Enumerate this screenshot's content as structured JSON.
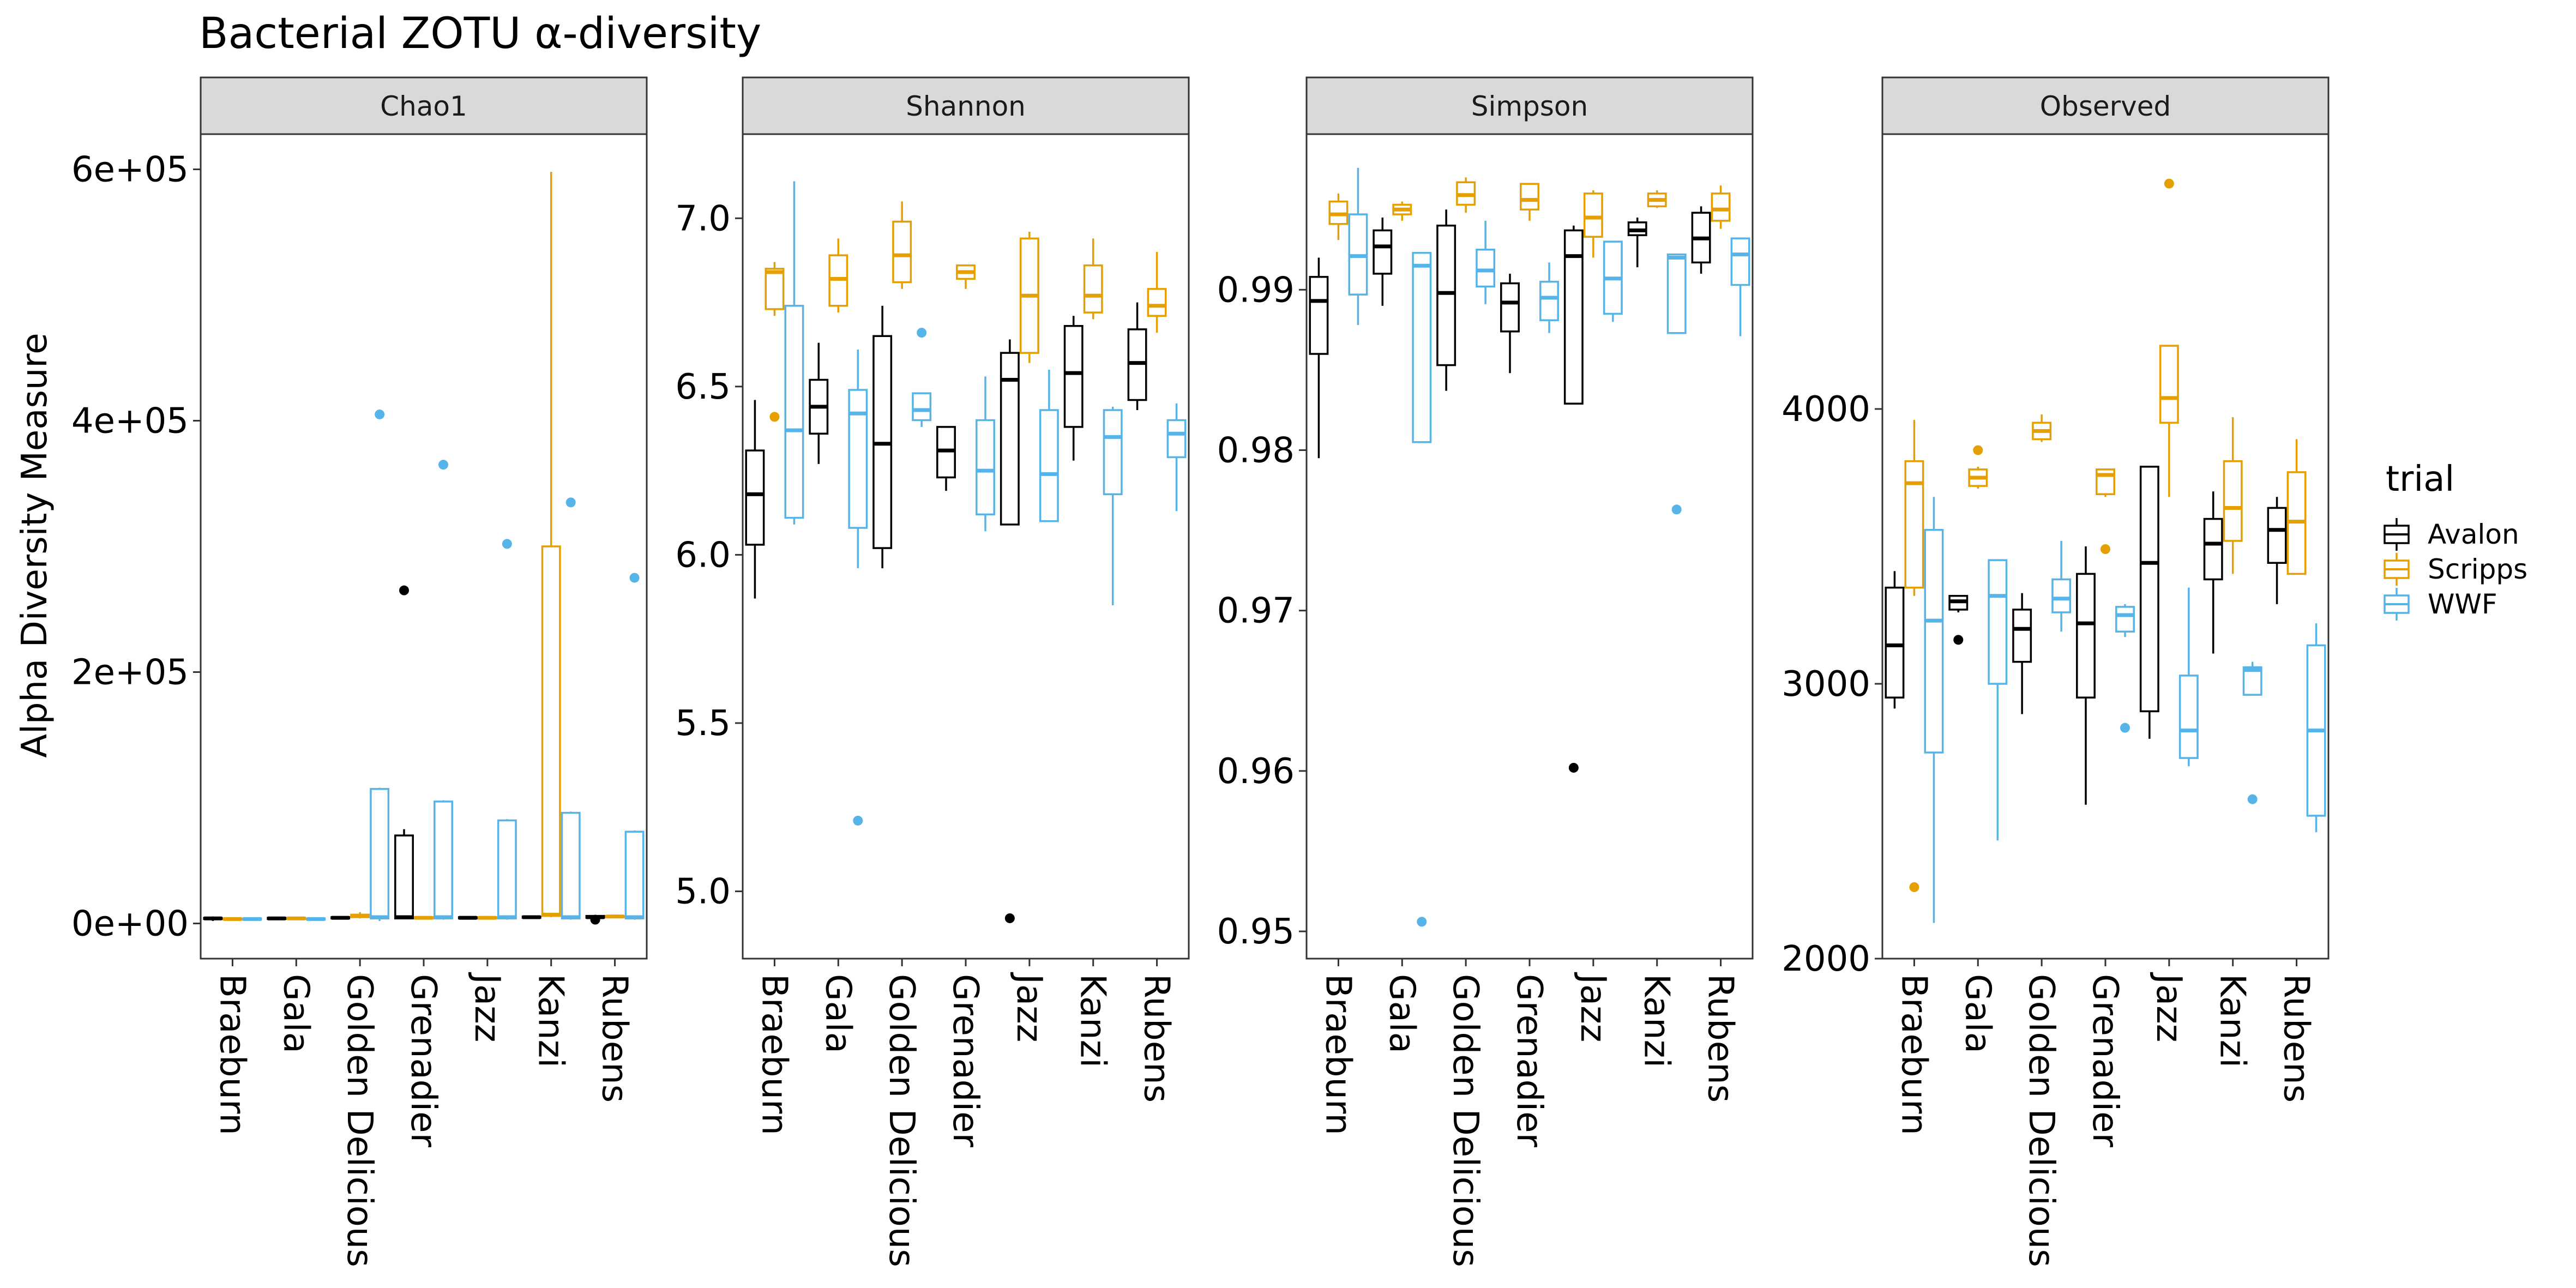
{
  "chart_data": {
    "type": "box",
    "title": "Bacterial ZOTU α-diversity",
    "ylabel": "Alpha Diversity Measure",
    "xlabel": "",
    "categories": [
      "Braeburn",
      "Gala",
      "Golden Delicious",
      "Grenadier",
      "Jazz",
      "Kanzi",
      "Rubens"
    ],
    "legend": {
      "title": "trial",
      "position": "right",
      "items": [
        {
          "name": "Avalon",
          "color": "#000000"
        },
        {
          "name": "Scripps",
          "color": "#E69F00"
        },
        {
          "name": "WWF",
          "color": "#56B4E9"
        }
      ]
    },
    "panels": [
      {
        "name": "Chao1",
        "ylim": [
          -28000,
          628000
        ],
        "yticks": [
          0,
          200000,
          400000,
          600000
        ],
        "yticklabels": [
          "0e+00",
          "2e+05",
          "4e+05",
          "6e+05"
        ],
        "boxes": {
          "Avalon": [
            [
              2000,
              3500,
              4000,
              4500,
              5500,
              []
            ],
            [
              3000,
              3500,
              4000,
              4500,
              5000,
              []
            ],
            [
              3500,
              4000,
              4500,
              5000,
              5500,
              []
            ],
            [
              3500,
              4000,
              5000,
              70000,
              75000,
              [
                265000
              ]
            ],
            [
              3500,
              4000,
              4500,
              5000,
              5500,
              []
            ],
            [
              4000,
              4500,
              5000,
              5500,
              6000,
              []
            ],
            [
              3500,
              4500,
              5000,
              6000,
              6500,
              [
                3000
              ]
            ]
          ],
          "Scripps": [
            [
              2500,
              3000,
              3500,
              4000,
              4500,
              []
            ],
            [
              3000,
              3500,
              4000,
              4500,
              5000,
              []
            ],
            [
              4000,
              5000,
              6000,
              7000,
              9000,
              []
            ],
            [
              3500,
              4000,
              4500,
              5000,
              5500,
              []
            ],
            [
              3500,
              4000,
              4500,
              5000,
              6000,
              []
            ],
            [
              5000,
              6000,
              7000,
              300000,
              598000,
              []
            ],
            [
              4000,
              5000,
              5500,
              6000,
              7000,
              []
            ]
          ],
          "WWF": [
            [
              2500,
              3000,
              3500,
              4000,
              4500,
              []
            ],
            [
              2500,
              3000,
              3500,
              4000,
              4500,
              []
            ],
            [
              2000,
              4000,
              5000,
              107000,
              108000,
              [
                405000
              ]
            ],
            [
              3000,
              4000,
              5000,
              97000,
              98000,
              [
                365000
              ]
            ],
            [
              3000,
              4000,
              5000,
              82000,
              83000,
              [
                302000
              ]
            ],
            [
              3000,
              4000,
              5000,
              88000,
              89000,
              [
                335000
              ]
            ],
            [
              3000,
              4000,
              5000,
              73000,
              74000,
              [
                275000
              ]
            ]
          ]
        }
      },
      {
        "name": "Shannon",
        "ylim": [
          4.8,
          7.25
        ],
        "yticks": [
          5.0,
          5.5,
          6.0,
          6.5,
          7.0
        ],
        "yticklabels": [
          "5.0",
          "5.5",
          "6.0",
          "6.5",
          "7.0"
        ],
        "boxes": {
          "Avalon": [
            [
              5.87,
              6.03,
              6.18,
              6.31,
              6.46,
              []
            ],
            [
              6.27,
              6.36,
              6.44,
              6.52,
              6.63,
              []
            ],
            [
              5.96,
              6.02,
              6.33,
              6.65,
              6.74,
              []
            ],
            [
              6.19,
              6.23,
              6.31,
              6.38,
              6.38,
              []
            ],
            [
              6.09,
              6.09,
              6.52,
              6.6,
              6.64,
              [
                4.92
              ]
            ],
            [
              6.28,
              6.38,
              6.54,
              6.68,
              6.71,
              []
            ],
            [
              6.43,
              6.46,
              6.57,
              6.67,
              6.75,
              []
            ]
          ],
          "Scripps": [
            [
              6.71,
              6.73,
              6.84,
              6.85,
              6.87,
              [
                6.41
              ]
            ],
            [
              6.72,
              6.74,
              6.82,
              6.89,
              6.94,
              []
            ],
            [
              6.79,
              6.81,
              6.89,
              6.99,
              7.05,
              []
            ],
            [
              6.79,
              6.82,
              6.84,
              6.86,
              6.86,
              []
            ],
            [
              6.57,
              6.6,
              6.77,
              6.94,
              6.96,
              []
            ],
            [
              6.7,
              6.72,
              6.77,
              6.86,
              6.94,
              []
            ],
            [
              6.66,
              6.71,
              6.74,
              6.79,
              6.9,
              []
            ]
          ],
          "WWF": [
            [
              6.09,
              6.11,
              6.37,
              6.74,
              7.11,
              []
            ],
            [
              5.96,
              6.08,
              6.42,
              6.49,
              6.61,
              [
                5.21
              ]
            ],
            [
              6.38,
              6.4,
              6.43,
              6.48,
              6.48,
              [
                6.66
              ]
            ],
            [
              6.07,
              6.12,
              6.25,
              6.4,
              6.53,
              []
            ],
            [
              6.1,
              6.1,
              6.24,
              6.43,
              6.55,
              []
            ],
            [
              5.85,
              6.18,
              6.35,
              6.43,
              6.44,
              []
            ],
            [
              6.13,
              6.29,
              6.36,
              6.4,
              6.45,
              []
            ]
          ]
        }
      },
      {
        "name": "Simpson",
        "ylim": [
          0.9483,
          0.9997
        ],
        "yticks": [
          0.95,
          0.96,
          0.97,
          0.98,
          0.99
        ],
        "yticklabels": [
          "0.95",
          "0.96",
          "0.97",
          "0.98",
          "0.99"
        ],
        "boxes": {
          "Avalon": [
            [
              0.9795,
              0.986,
              0.9893,
              0.9908,
              0.992,
              []
            ],
            [
              0.989,
              0.991,
              0.9927,
              0.9937,
              0.9945,
              []
            ],
            [
              0.9837,
              0.9853,
              0.9898,
              0.994,
              0.995,
              []
            ],
            [
              0.9848,
              0.9874,
              0.9892,
              0.9904,
              0.991,
              []
            ],
            [
              0.9829,
              0.9829,
              0.9921,
              0.9937,
              0.994,
              [
                0.9602
              ]
            ],
            [
              0.9914,
              0.9934,
              0.9937,
              0.9942,
              0.9945,
              []
            ],
            [
              0.991,
              0.9917,
              0.9932,
              0.9948,
              0.9952,
              []
            ]
          ],
          "Scripps": [
            [
              0.9931,
              0.9941,
              0.9947,
              0.9955,
              0.996,
              []
            ],
            [
              0.9943,
              0.9947,
              0.995,
              0.9953,
              0.9955,
              []
            ],
            [
              0.9948,
              0.9953,
              0.9959,
              0.9967,
              0.997,
              []
            ],
            [
              0.9943,
              0.995,
              0.9956,
              0.9966,
              0.9966,
              []
            ],
            [
              0.992,
              0.9933,
              0.9945,
              0.996,
              0.9962,
              []
            ],
            [
              0.9951,
              0.9952,
              0.9956,
              0.996,
              0.9962,
              []
            ],
            [
              0.9938,
              0.9943,
              0.995,
              0.996,
              0.9965,
              []
            ]
          ],
          "WWF": [
            [
              0.9878,
              0.9897,
              0.9921,
              0.9947,
              0.9976,
              []
            ],
            [
              0.9805,
              0.9805,
              0.9915,
              0.9923,
              0.9923,
              [
                0.9506
              ]
            ],
            [
              0.9891,
              0.9902,
              0.9912,
              0.9925,
              0.9943,
              []
            ],
            [
              0.9873,
              0.9881,
              0.9895,
              0.9905,
              0.9917,
              []
            ],
            [
              0.988,
              0.9885,
              0.9907,
              0.993,
              0.993,
              []
            ],
            [
              0.9873,
              0.9873,
              0.992,
              0.9922,
              0.9922,
              [
                0.9763
              ]
            ],
            [
              0.9871,
              0.9903,
              0.9922,
              0.9932,
              0.9932,
              []
            ]
          ]
        }
      },
      {
        "name": "Observed",
        "ylim": [
          2000,
          5000
        ],
        "yticks": [
          2000,
          3000,
          4000
        ],
        "yticklabels": [
          "2000",
          "3000",
          "4000"
        ],
        "boxes": {
          "Avalon": [
            [
              2910,
              2950,
              3140,
              3350,
              3410,
              []
            ],
            [
              3260,
              3270,
              3300,
              3320,
              3320,
              [
                3160
              ]
            ],
            [
              2890,
              3080,
              3200,
              3270,
              3330,
              []
            ],
            [
              2560,
              2950,
              3220,
              3400,
              3500,
              []
            ],
            [
              2800,
              2900,
              3440,
              3790,
              3790,
              []
            ],
            [
              3110,
              3380,
              3510,
              3600,
              3700,
              []
            ],
            [
              3290,
              3440,
              3560,
              3640,
              3680,
              []
            ]
          ],
          "Scripps": [
            [
              3320,
              3350,
              3730,
              3810,
              3960,
              [
                2260
              ]
            ],
            [
              3710,
              3720,
              3750,
              3780,
              3790,
              [
                3850
              ]
            ],
            [
              3880,
              3890,
              3920,
              3950,
              3980,
              []
            ],
            [
              3680,
              3690,
              3760,
              3780,
              3780,
              [
                3490
              ]
            ],
            [
              3680,
              3950,
              4040,
              4230,
              4230,
              [
                4820
              ]
            ],
            [
              3400,
              3520,
              3640,
              3810,
              3970,
              []
            ],
            [
              3410,
              3400,
              3590,
              3770,
              3890,
              []
            ]
          ],
          "WWF": [
            [
              2130,
              2750,
              3230,
              3560,
              3680,
              []
            ],
            [
              2430,
              3000,
              3320,
              3450,
              3450,
              []
            ],
            [
              3190,
              3260,
              3310,
              3380,
              3520,
              []
            ],
            [
              3170,
              3190,
              3250,
              3280,
              3290,
              [
                2840
              ]
            ],
            [
              2700,
              2730,
              2830,
              3030,
              3350,
              []
            ],
            [
              3000,
              2960,
              3050,
              3060,
              3080,
              [
                2580
              ]
            ],
            [
              2460,
              2520,
              2830,
              3140,
              3220,
              []
            ]
          ]
        }
      }
    ]
  }
}
